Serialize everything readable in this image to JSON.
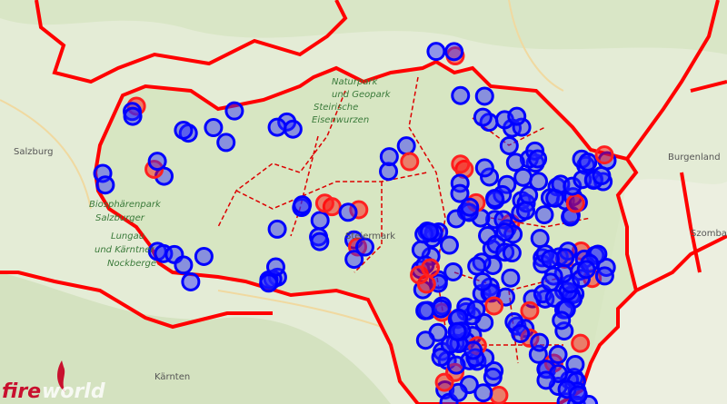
{
  "map": {
    "labels": [
      "Salzburg",
      "Biosphärenpark",
      "Salzburger",
      "Lungau",
      "und Kärntner",
      "Nockberge",
      "Naturpark",
      "und Geopark",
      "Steirische",
      "Eisenwurzen",
      "Steiermark",
      "Burgenland",
      "Szomba",
      "Kärnten"
    ],
    "logo": {
      "part_1": "fire",
      "part_2": "world"
    }
  }
}
